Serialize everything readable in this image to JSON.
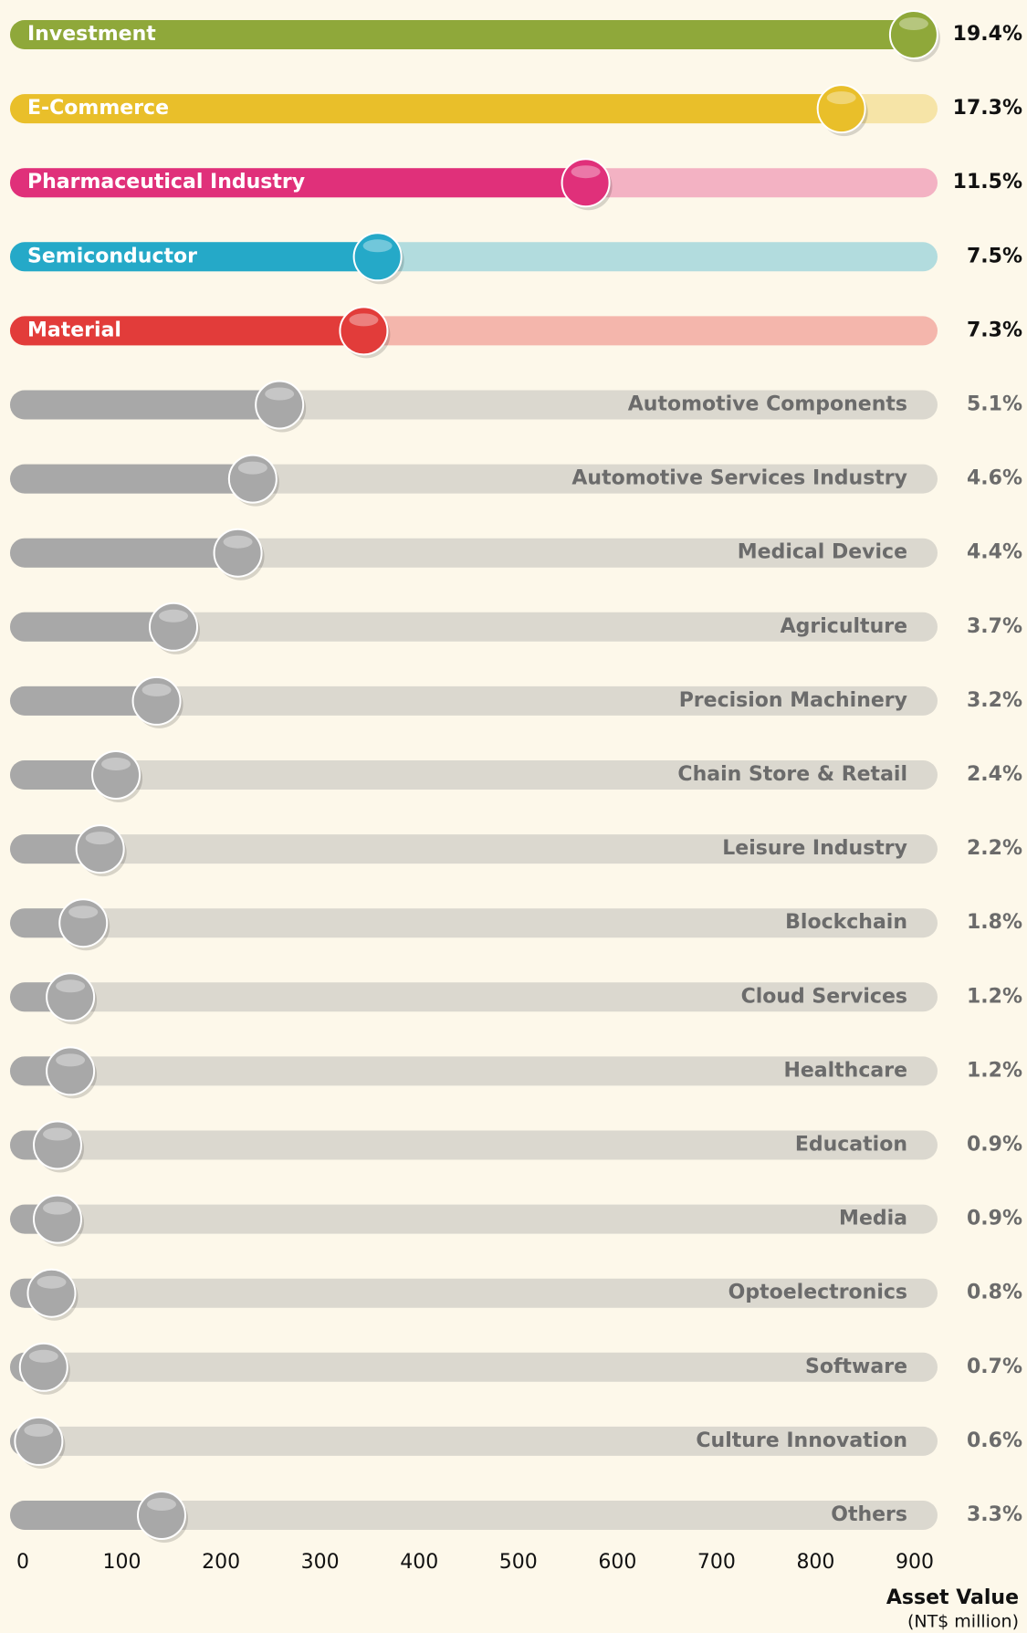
{
  "chart_data": {
    "type": "slider-bar",
    "categories": [
      "Investment",
      "E-Commerce",
      "Pharmaceutical Industry",
      "Semiconductor",
      "Material",
      "Automotive Components",
      "Automotive Services Industry",
      "Medical Device",
      "Agriculture",
      "Precision Machinery",
      "Chain Store & Retail",
      "Leisure Industry",
      "Blockchain",
      "Cloud Services",
      "Healthcare",
      "Education",
      "Media",
      "Optoelectronics",
      "Software",
      "Culture Innovation",
      "Others"
    ],
    "values": [
      899,
      826,
      568,
      358,
      344,
      259,
      232,
      217,
      152,
      135,
      94,
      78,
      61,
      48,
      48,
      35,
      35,
      29,
      21,
      16,
      140
    ],
    "share_labels": [
      "19.4%",
      "17.3%",
      "11.5%",
      "7.5%",
      "7.3%",
      "5.1%",
      "4.6%",
      "4.4%",
      "3.7%",
      "3.2%",
      "2.4%",
      "2.2%",
      "1.8%",
      "1.2%",
      "1.2%",
      "0.9%",
      "0.9%",
      "0.8%",
      "0.7%",
      "0.6%",
      "3.3%"
    ],
    "colors": [
      "#8fa83a",
      "#e9bf2a",
      "#e0307a",
      "#25a9c8",
      "#e23c3a",
      "#a8a8a8",
      "#a8a8a8",
      "#a8a8a8",
      "#a8a8a8",
      "#a8a8a8",
      "#a8a8a8",
      "#a8a8a8",
      "#a8a8a8",
      "#a8a8a8",
      "#a8a8a8",
      "#a8a8a8",
      "#a8a8a8",
      "#a8a8a8",
      "#a8a8a8",
      "#a8a8a8",
      "#a8a8a8"
    ],
    "xlim": [
      0,
      900
    ],
    "xticks": [
      0,
      100,
      200,
      300,
      400,
      500,
      600,
      700,
      800,
      900
    ],
    "x_label": "Asset Value",
    "x_unit": "(NT$ million)"
  }
}
